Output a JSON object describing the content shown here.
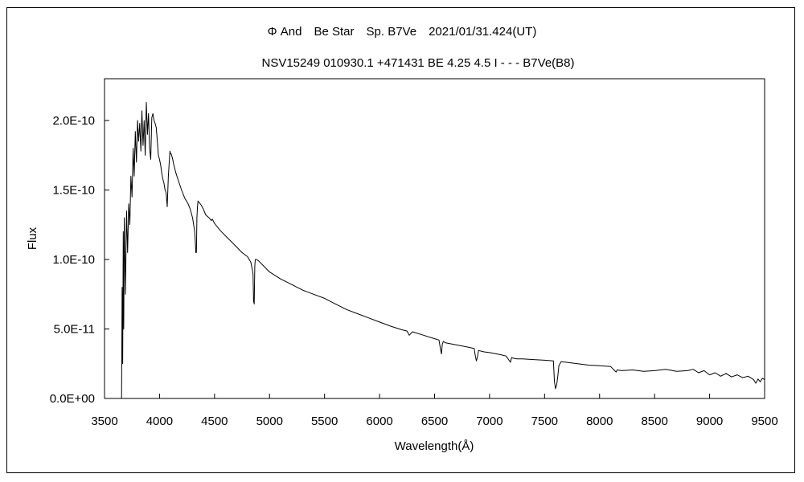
{
  "chart_data": {
    "type": "line",
    "title": "Φ And　Be Star　Sp. B7Ve　2021/01/31.424(UT)",
    "subtitle": "NSV15249 010930.1 +471431 BE 4.25 4.5 I - - - B7Ve(B8)",
    "xlabel": "Wavelength(Å)",
    "ylabel": "Flux",
    "xlim": [
      3500,
      9500
    ],
    "ylim": [
      0,
      2.4e-10
    ],
    "x_ticks": [
      3500,
      4000,
      4500,
      5000,
      5500,
      6000,
      6500,
      7000,
      7500,
      8000,
      8500,
      9000,
      9500
    ],
    "x_tick_labels": [
      "3500",
      "4000",
      "4500",
      "5000",
      "5500",
      "6000",
      "6500",
      "7000",
      "7500",
      "8000",
      "8500",
      "9000",
      "9500"
    ],
    "y_ticks": [
      0,
      5e-11,
      1e-10,
      1.5e-10,
      2e-10
    ],
    "y_tick_labels": [
      "0.0E+00",
      "5.0E-11",
      "1.0E-10",
      "1.5E-10",
      "2.0E-10"
    ],
    "grid": false,
    "legend": "none",
    "color": "#000000",
    "series": [
      {
        "x": [
          3655,
          3660,
          3665,
          3670,
          3675,
          3680,
          3690,
          3700,
          3710,
          3720,
          3730,
          3740,
          3750,
          3760,
          3770,
          3780,
          3790,
          3800,
          3810,
          3820,
          3830,
          3840,
          3850,
          3860,
          3870,
          3880,
          3890,
          3900,
          3910,
          3920,
          3930,
          3940,
          3950,
          3960,
          3970,
          3980,
          3990,
          4000,
          4010,
          4020,
          4030,
          4040,
          4050,
          4060,
          4070,
          4080,
          4090,
          4095,
          4100,
          4105,
          4110,
          4120,
          4130,
          4150,
          4170,
          4200,
          4230,
          4260,
          4280,
          4300,
          4320,
          4330,
          4335,
          4340,
          4345,
          4350,
          4360,
          4380,
          4400,
          4420,
          4450,
          4471,
          4480,
          4500,
          4550,
          4600,
          4650,
          4700,
          4750,
          4800,
          4830,
          4850,
          4855,
          4861,
          4866,
          4870,
          4880,
          4900,
          4950,
          5000,
          5100,
          5200,
          5300,
          5400,
          5500,
          5600,
          5700,
          5800,
          5900,
          6000,
          6100,
          6200,
          6250,
          6270,
          6300,
          6400,
          6500,
          6540,
          6555,
          6563,
          6570,
          6580,
          6600,
          6700,
          6800,
          6860,
          6870,
          6880,
          6890,
          6900,
          6950,
          7000,
          7100,
          7150,
          7190,
          7200,
          7210,
          7250,
          7300,
          7400,
          7500,
          7580,
          7590,
          7600,
          7610,
          7620,
          7630,
          7650,
          7700,
          7800,
          7900,
          8000,
          8100,
          8150,
          8160,
          8200,
          8300,
          8400,
          8500,
          8600,
          8700,
          8800,
          8850,
          8900,
          8950,
          9000,
          9050,
          9100,
          9150,
          9200,
          9250,
          9300,
          9350,
          9400,
          9420,
          9440,
          9460,
          9480,
          9500
        ],
        "y": [
          0,
          8e-11,
          2.5e-11,
          1.2e-10,
          5e-11,
          1.3e-10,
          7.5e-11,
          1.35e-10,
          1.05e-10,
          1.4e-10,
          1.25e-10,
          1.6e-10,
          1.45e-10,
          1.8e-10,
          1.6e-10,
          1.92e-10,
          1.7e-10,
          2e-10,
          1.85e-10,
          1.98e-10,
          1.78e-10,
          2.07e-10,
          1.82e-10,
          2e-10,
          1.75e-10,
          2.13e-10,
          1.9e-10,
          2.05e-10,
          1.8e-10,
          1.72e-10,
          2.02e-10,
          2.05e-10,
          2e-10,
          1.98e-10,
          1.95e-10,
          1.85e-10,
          1.75e-10,
          1.72e-10,
          1.68e-10,
          1.62e-10,
          1.58e-10,
          1.55e-10,
          1.5e-10,
          1.48e-10,
          1.38e-10,
          1.6e-10,
          1.72e-10,
          1.78e-10,
          1.76e-10,
          1.76e-10,
          1.75e-10,
          1.72e-10,
          1.68e-10,
          1.62e-10,
          1.57e-10,
          1.5e-10,
          1.44e-10,
          1.4e-10,
          1.36e-10,
          1.3e-10,
          1.2e-10,
          1.05e-10,
          1.05e-10,
          1.3e-10,
          1.38e-10,
          1.42e-10,
          1.41e-10,
          1.39e-10,
          1.36e-10,
          1.32e-10,
          1.3e-10,
          1.28e-10,
          1.29e-10,
          1.26e-10,
          1.21e-10,
          1.17e-10,
          1.13e-10,
          1.09e-10,
          1.05e-10,
          1.02e-10,
          9.8e-11,
          9e-11,
          7e-11,
          6.8e-11,
          9.5e-11,
          1e-10,
          1e-10,
          9.9e-11,
          9.5e-11,
          9.1e-11,
          8.6e-11,
          8.2e-11,
          7.8e-11,
          7.5e-11,
          7.2e-11,
          6.8e-11,
          6.4e-11,
          6.1e-11,
          5.8e-11,
          5.5e-11,
          5.2e-11,
          4.95e-11,
          4.85e-11,
          4.55e-11,
          4.8e-11,
          4.55e-11,
          4.3e-11,
          4.2e-11,
          3.5e-11,
          3.2e-11,
          3.9e-11,
          4.1e-11,
          4e-11,
          3.85e-11,
          3.7e-11,
          3.6e-11,
          3.1e-11,
          2.7e-11,
          3e-11,
          3.45e-11,
          3.35e-11,
          3.3e-11,
          3.15e-11,
          3.05e-11,
          2.6e-11,
          2.95e-11,
          2.9e-11,
          2.85e-11,
          2.85e-11,
          2.8e-11,
          2.75e-11,
          2.7e-11,
          1.2e-11,
          7e-12,
          1e-11,
          1.6e-11,
          2.35e-11,
          2.65e-11,
          2.6e-11,
          2.5e-11,
          2.4e-11,
          2.35e-11,
          2.3e-11,
          1.9e-11,
          2.05e-11,
          2e-11,
          2.05e-11,
          1.95e-11,
          2e-11,
          2.1e-11,
          1.95e-11,
          2e-11,
          2.1e-11,
          1.85e-11,
          2e-11,
          1.7e-11,
          1.85e-11,
          1.6e-11,
          1.8e-11,
          1.55e-11,
          1.7e-11,
          1.5e-11,
          1.6e-11,
          1.35e-11,
          1.1e-11,
          1.4e-11,
          1.2e-11,
          1.45e-11,
          1.35e-11
        ]
      }
    ]
  }
}
